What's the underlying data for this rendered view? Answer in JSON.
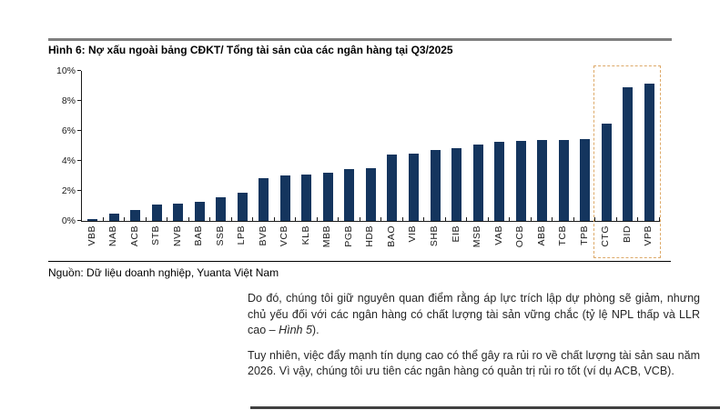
{
  "figure": {
    "title": "Hình 6: Nợ xấu ngoài bảng CĐKT/ Tổng tài sản của các ngân hàng tại Q3/2025",
    "source": "Nguồn: Dữ liệu doanh nghiệp, Yuanta Việt Nam"
  },
  "chart_data": {
    "type": "bar",
    "title": "Hình 6: Nợ xấu ngoài bảng CĐKT/ Tổng tài sản của các ngân hàng tại Q3/2025",
    "categories": [
      "VBB",
      "NAB",
      "ACB",
      "STB",
      "NVB",
      "BAB",
      "SSB",
      "LPB",
      "BVB",
      "VCB",
      "KLB",
      "MBB",
      "PGB",
      "HDB",
      "BAO",
      "VIB",
      "SHB",
      "EIB",
      "MSB",
      "VAB",
      "OCB",
      "ABB",
      "TCB",
      "TPB",
      "CTG",
      "BID",
      "VPB"
    ],
    "values": [
      0.15,
      0.5,
      0.75,
      1.1,
      1.15,
      1.25,
      1.55,
      1.9,
      2.85,
      3.05,
      3.1,
      3.2,
      3.45,
      3.5,
      4.4,
      4.5,
      4.7,
      4.85,
      5.1,
      5.3,
      5.35,
      5.4,
      5.4,
      5.45,
      6.5,
      8.9,
      9.15
    ],
    "unit": "%",
    "xlabel": "",
    "ylabel": "",
    "ylim": [
      0,
      10
    ],
    "yticks": [
      "0%",
      "2%",
      "4%",
      "6%",
      "8%",
      "10%"
    ],
    "grid": "off",
    "bar_color": "#14355e",
    "highlight": {
      "categories": [
        "CTG",
        "BID",
        "VPB"
      ],
      "style": "dashed-box",
      "box_color": "#dda968"
    }
  },
  "paragraphs": {
    "p1": {
      "before": "Do đó, chúng tôi giữ nguyên quan điểm rằng áp lực trích lập dự phòng sẽ giảm, nhưng chủ yếu đối với các ngân hàng có chất lượng tài sản vững chắc (tỷ lệ NPL thấp và LLR cao – ",
      "italic": "Hình 5",
      "after": ")."
    },
    "p2": {
      "text": "Tuy nhiên, việc đẩy mạnh tín dụng cao có thể gây ra rủi ro về chất lượng tài sản sau năm 2026. Vì vậy, chúng tôi ưu tiên các ngân hàng có quản trị rủi ro tốt (ví dụ ACB, VCB)."
    }
  }
}
